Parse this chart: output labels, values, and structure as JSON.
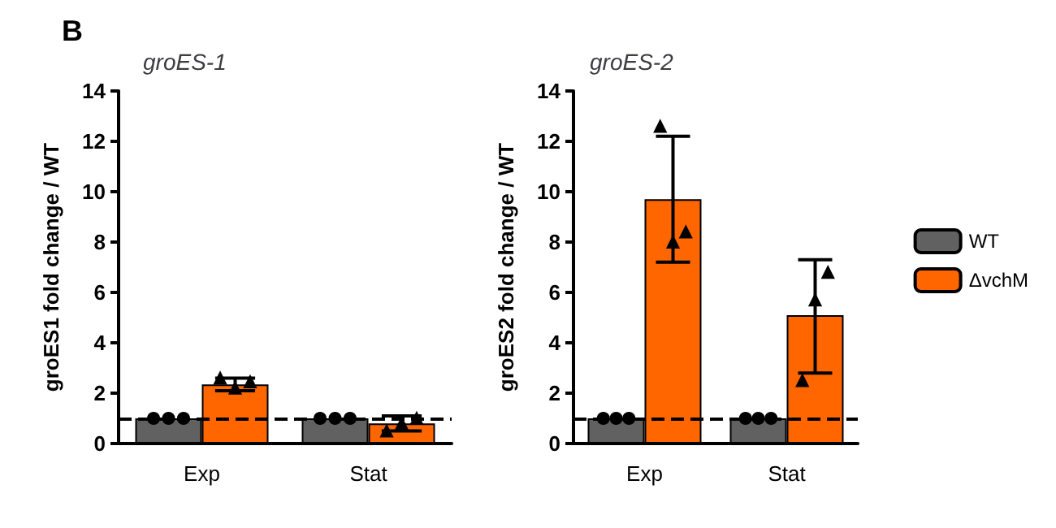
{
  "chart_data": [
    {
      "type": "bar",
      "title": "groES-1",
      "ylabel": "groES1 fold change / WT",
      "annotations": [
        "B"
      ],
      "categories": [
        "Exp",
        "Stat"
      ],
      "ylim": [
        0,
        14
      ],
      "yticks": [
        0,
        2,
        4,
        6,
        8,
        10,
        12,
        14
      ],
      "grid": false,
      "series": [
        {
          "color": "#616161",
          "values": [
            1,
            1
          ]
        },
        {
          "color": "#ff6600",
          "values": [
            2.35,
            0.8
          ],
          "errors": [
            [
              2.1,
              2.6
            ],
            [
              0.5,
              1.1
            ]
          ]
        },
        {
          "type": "scatter",
          "marker": "circle",
          "color": "#000000",
          "x": [
            "Exp",
            "Exp",
            "Exp",
            "Stat",
            "Stat",
            "Stat"
          ],
          "values": [
            1,
            1,
            1,
            1,
            1,
            1
          ]
        },
        {
          "type": "scatter",
          "marker": "triangle",
          "color": "#000000",
          "x": [
            "Exp",
            "Exp",
            "Exp",
            "Stat",
            "Stat",
            "Stat"
          ],
          "values": [
            2.6,
            2.2,
            2.45,
            0.5,
            0.8,
            1.0
          ]
        }
      ],
      "ref_lines": [
        {
          "axis": "y",
          "value": 1,
          "color": "#000000",
          "line_style": "dashed"
        }
      ]
    },
    {
      "type": "bar",
      "title": "groES-2",
      "ylabel": "groES2 fold change / WT",
      "categories": [
        "Exp",
        "Stat"
      ],
      "ylim": [
        0,
        14
      ],
      "yticks": [
        0,
        2,
        4,
        6,
        8,
        10,
        12,
        14
      ],
      "grid": false,
      "legend": "right",
      "series": [
        {
          "name": "WT",
          "color": "#616161",
          "values": [
            1,
            1
          ]
        },
        {
          "name": "ΔvchM",
          "color": "#ff6600",
          "values": [
            9.7,
            5.1
          ],
          "errors": [
            [
              7.2,
              12.2
            ],
            [
              2.8,
              7.3
            ]
          ]
        },
        {
          "type": "scatter",
          "marker": "circle",
          "color": "#000000",
          "x": [
            "Exp",
            "Exp",
            "Exp",
            "Stat",
            "Stat",
            "Stat"
          ],
          "values": [
            1,
            1,
            1,
            1,
            1,
            1
          ]
        },
        {
          "type": "scatter",
          "marker": "triangle",
          "color": "#000000",
          "x": [
            "Exp",
            "Exp",
            "Exp",
            "Stat",
            "Stat",
            "Stat"
          ],
          "values": [
            12.6,
            8.0,
            8.4,
            2.5,
            5.7,
            6.8
          ]
        }
      ],
      "ref_lines": [
        {
          "axis": "y",
          "value": 1,
          "color": "#000000",
          "line_style": "dashed"
        }
      ]
    }
  ]
}
